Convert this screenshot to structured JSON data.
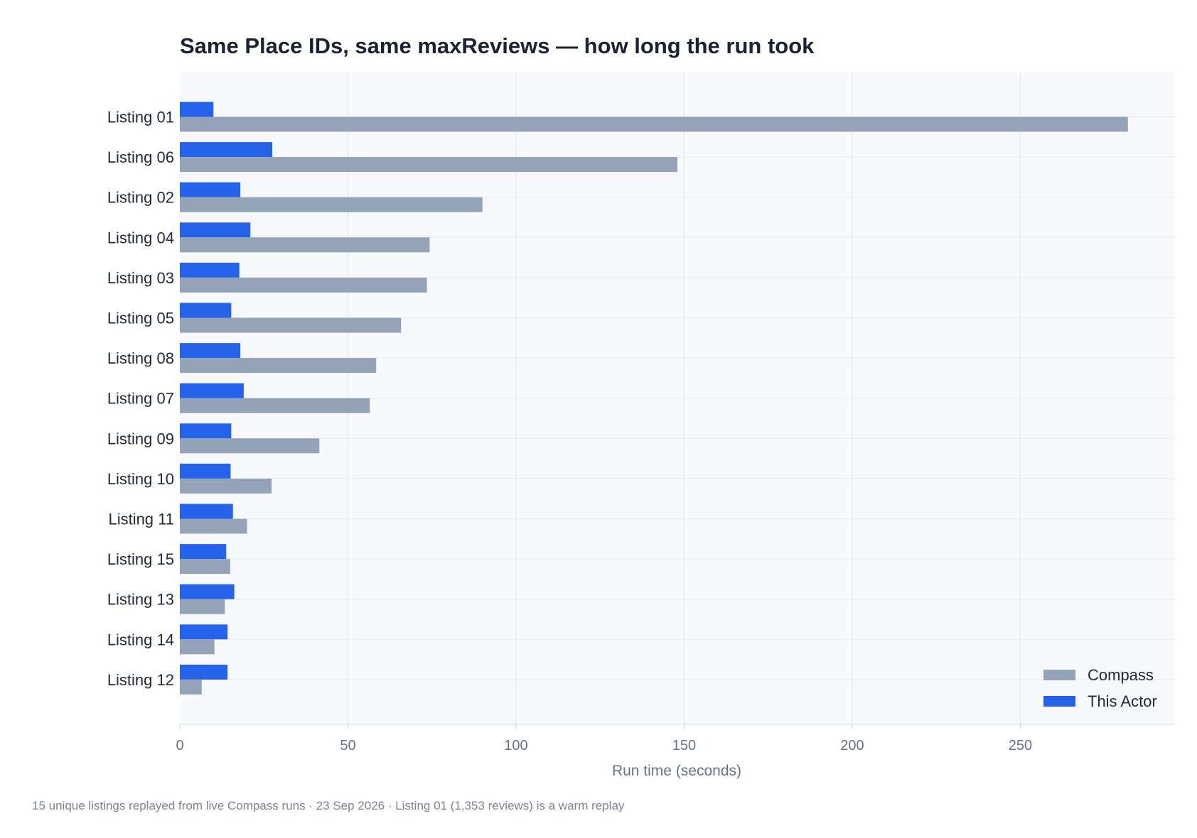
{
  "chart_data": {
    "type": "bar",
    "orientation": "horizontal",
    "title": "Same Place IDs, same maxReviews — how long the run took",
    "xlabel": "Run time (seconds)",
    "ylabel": "",
    "xlim": [
      0,
      296
    ],
    "x_ticks": [
      0,
      50,
      100,
      150,
      200,
      250
    ],
    "grid": true,
    "legend_position": "bottom-right",
    "categories": [
      "Listing 01",
      "Listing 06",
      "Listing 02",
      "Listing 04",
      "Listing 03",
      "Listing 05",
      "Listing 08",
      "Listing 07",
      "Listing 09",
      "Listing 10",
      "Listing 11",
      "Listing 15",
      "Listing 13",
      "Listing 14",
      "Listing 12"
    ],
    "series": [
      {
        "name": "This Actor",
        "color": "#2563eb",
        "values": [
          10,
          27.5,
          18,
          21,
          17.7,
          15.3,
          18,
          19,
          15.3,
          15.1,
          15.8,
          13.8,
          16.2,
          14.2,
          14.2
        ]
      },
      {
        "name": "Compass",
        "color": "#94a3b8",
        "values": [
          282,
          148,
          90,
          74.3,
          73.5,
          65.8,
          58.4,
          56.5,
          41.5,
          27.3,
          20,
          15,
          13.4,
          10.3,
          6.5
        ]
      }
    ],
    "legend": [
      {
        "name": "Compass",
        "color": "#94a3b8"
      },
      {
        "name": "This Actor",
        "color": "#2563eb"
      }
    ],
    "footnote": "15 unique listings replayed from live Compass runs · 23 Sep 2026 · Listing 01 (1,353 reviews) is a warm replay"
  }
}
